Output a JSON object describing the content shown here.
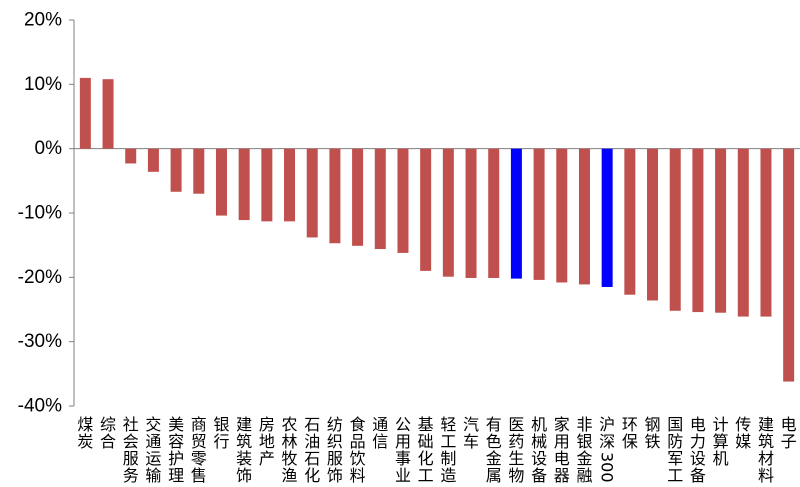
{
  "chart_data": {
    "type": "bar",
    "title": "",
    "xlabel": "",
    "ylabel": "",
    "ylim": [
      -40,
      20
    ],
    "yticks": [
      20,
      10,
      0,
      -10,
      -20,
      -30,
      -40
    ],
    "ytick_labels": [
      "20%",
      "10%",
      "0%",
      "-10%",
      "-20%",
      "-30%",
      "-40%"
    ],
    "grid": false,
    "legend": "none",
    "colors": {
      "default": "#C0504D",
      "highlight": "#0000FF"
    },
    "categories": [
      "煤炭",
      "综合",
      "社会服务",
      "交通运输",
      "美容护理",
      "商贸零售",
      "银行",
      "建筑装饰",
      "房地产",
      "农林牧渔",
      "石油石化",
      "纺织服饰",
      "食品饮料",
      "通信",
      "公用事业",
      "基础化工",
      "轻工制造",
      "汽车",
      "有色金属",
      "医药生物",
      "机械设备",
      "家用电器",
      "非银金融",
      "沪深300",
      "环保",
      "钢铁",
      "国防军工",
      "电力设备",
      "计算机",
      "传媒",
      "建筑材料",
      "电子"
    ],
    "values": [
      11.0,
      10.8,
      -2.3,
      -3.6,
      -6.7,
      -7.0,
      -10.4,
      -11.1,
      -11.3,
      -11.3,
      -13.8,
      -14.7,
      -15.1,
      -15.6,
      -16.2,
      -19.0,
      -19.9,
      -20.1,
      -20.1,
      -20.2,
      -20.4,
      -20.8,
      -21.1,
      -21.5,
      -22.7,
      -23.6,
      -25.2,
      -25.4,
      -25.5,
      -26.1,
      -26.1,
      -36.2
    ],
    "highlighted": [
      "医药生物",
      "沪深300"
    ]
  }
}
